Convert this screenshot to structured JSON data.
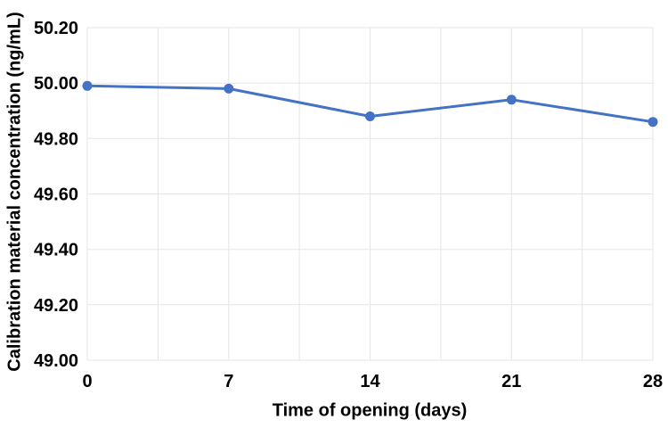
{
  "chart_data": {
    "type": "line",
    "title": "",
    "xlabel": "Time of opening (days)",
    "ylabel": "Calibration material concentration (ng/mL)",
    "x": [
      0,
      7,
      14,
      21,
      28
    ],
    "values": [
      49.99,
      49.98,
      49.88,
      49.94,
      49.86
    ],
    "xlim": [
      0,
      28
    ],
    "ylim": [
      49.0,
      50.2
    ],
    "xticks": [
      0,
      7,
      14,
      21,
      28
    ],
    "xtick_labels": [
      "0",
      "7",
      "14",
      "21",
      "28"
    ],
    "ytick_step": 0.2,
    "ytick_labels": [
      "49.00",
      "49.20",
      "49.40",
      "49.60",
      "49.80",
      "50.00",
      "50.20"
    ],
    "x_grid_step": 3.5,
    "grid": true,
    "legend_position": "none",
    "colors": {
      "line": "#4472C4",
      "marker": "#4472C4",
      "grid": "#e5e5e5",
      "text": "#000000",
      "background": "#ffffff"
    },
    "marker": "circle",
    "marker_radius": 5.5,
    "line_width": 3
  }
}
